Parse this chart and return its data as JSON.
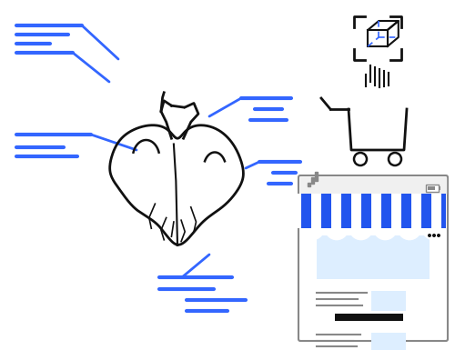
{
  "bg_color": "#ffffff",
  "blue": "#3366ff",
  "light_blue": "#ddeeff",
  "dark": "#111111",
  "gray": "#888888",
  "light_gray": "#cccccc",
  "stripe_blue": "#2255ee",
  "stripe_white": "#ffffff",
  "figsize": [
    5.0,
    3.85
  ],
  "dpi": 100
}
